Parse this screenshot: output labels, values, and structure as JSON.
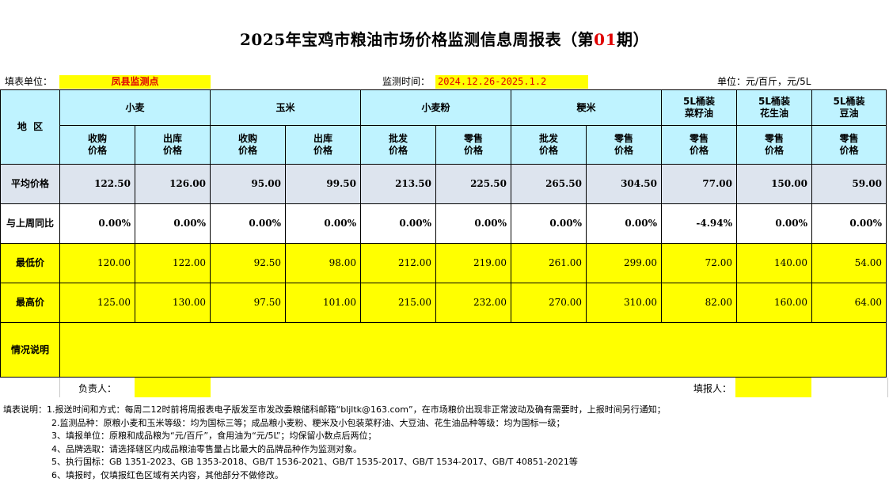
{
  "title": {
    "before": "2025年宝鸡市粮油市场价格监测信息周报表（第",
    "issue": "01",
    "after": "期）"
  },
  "info": {
    "unit_label": "填表单位：",
    "unit_value": "凤县监测点",
    "time_label": "监测时间：",
    "time_value": "2024.12.26-2025.1.2",
    "measure": "单位：元/百斤，元/5L"
  },
  "headers": {
    "region": "地  区",
    "products": [
      "小麦",
      "玉米",
      "小麦粉",
      "粳米",
      "5L桶装\n菜籽油",
      "5L桶装\n花生油",
      "5L桶装\n豆油"
    ],
    "sub": [
      "收购\n价格",
      "出库\n价格",
      "收购\n价格",
      "出库\n价格",
      "批发\n价格",
      "零售\n价格",
      "批发\n价格",
      "零售\n价格",
      "零售\n价格",
      "零售\n价格",
      "零售\n价格"
    ]
  },
  "rows": [
    {
      "label": "平均价格",
      "values": [
        "122.50",
        "126.00",
        "95.00",
        "99.50",
        "213.50",
        "225.50",
        "265.50",
        "304.50",
        "77.00",
        "150.00",
        "59.00"
      ]
    },
    {
      "label": "与上周同比",
      "values": [
        "0.00%",
        "0.00%",
        "0.00%",
        "0.00%",
        "0.00%",
        "0.00%",
        "0.00%",
        "0.00%",
        "-4.94%",
        "0.00%",
        "0.00%"
      ]
    },
    {
      "label": "最低价",
      "values": [
        "120.00",
        "122.00",
        "92.50",
        "98.00",
        "212.00",
        "219.00",
        "261.00",
        "299.00",
        "72.00",
        "140.00",
        "54.00"
      ]
    },
    {
      "label": "最高价",
      "values": [
        "125.00",
        "130.00",
        "97.50",
        "101.00",
        "215.00",
        "232.00",
        "270.00",
        "310.00",
        "82.00",
        "160.00",
        "64.00"
      ]
    }
  ],
  "remark_label": "情况说明",
  "sign": {
    "leader": "负责人：",
    "filler": "填报人："
  },
  "notes": [
    "填表说明：1.报送时间和方式：每周二12时前将周报表电子版发至市发改委粮储科邮箱“bljltk@163.com”，在市场粮价出现非正常波动及确有需要时，上报时间另行通知；",
    "2.监测品种：原粮小麦和玉米等级：均为国标三等；成品粮小麦粉、粳米及小包装菜籽油、大豆油、花生油品种等级：均为国标一级；",
    "3、填报单位：原粮和成品粮为“元/百斤”，食用油为“元/5L”；均保留小数点后两位；",
    "4、品牌选取：请选择辖区内成品粮油零售量占比最大的品牌品种作为监测对象。",
    "5、执行国标：GB 1351-2023、GB 1353-2018、GB/T 1536-2021、GB/T 1535-2017、GB/T 1534-2017、GB/T 40851-2021等",
    "6、填报时，仅填报红色区域有关内容，其他部分不做修改。"
  ]
}
